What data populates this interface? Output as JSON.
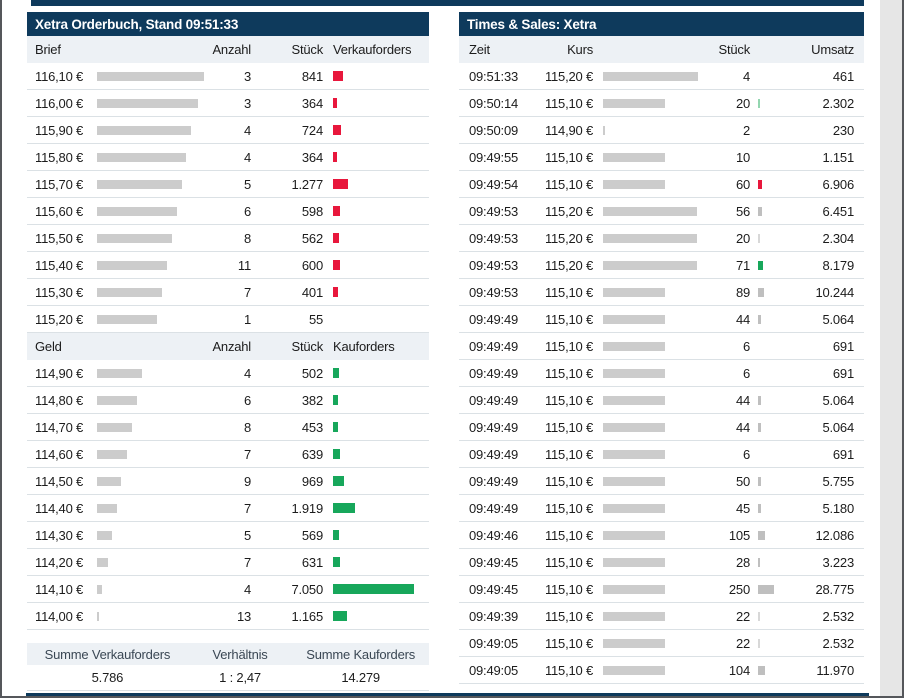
{
  "colors": {
    "accent_navy": "#0e3a5c",
    "header_bg": "#edf1f5",
    "row_line": "#dbe1e5",
    "redacted_gray": "#cccccc",
    "sell_red": "#e8173c",
    "buy_green": "#17a75b",
    "tick_gray": "#bfbfbf",
    "tick_light": "#d8d8d8",
    "tick_green": "#17a75b",
    "tick_lightgreen": "#93d6b0",
    "tick_red": "#e8173c"
  },
  "left_panel": {
    "title": "Xetra Orderbuch, Stand 09:51:33",
    "ask": {
      "columns": {
        "price": "Brief",
        "anzahl": "Anzahl",
        "stueck": "Stück",
        "orders": "Verkauforders"
      },
      "rows": [
        {
          "price": "116,10 €",
          "bar": 107,
          "anzahl": "3",
          "stueck": "841",
          "order": 10
        },
        {
          "price": "116,00 €",
          "bar": 101,
          "anzahl": "3",
          "stueck": "364",
          "order": 4
        },
        {
          "price": "115,90 €",
          "bar": 94,
          "anzahl": "4",
          "stueck": "724",
          "order": 8
        },
        {
          "price": "115,80 €",
          "bar": 89,
          "anzahl": "4",
          "stueck": "364",
          "order": 4
        },
        {
          "price": "115,70 €",
          "bar": 85,
          "anzahl": "5",
          "stueck": "1.277",
          "order": 15
        },
        {
          "price": "115,60 €",
          "bar": 80,
          "anzahl": "6",
          "stueck": "598",
          "order": 7
        },
        {
          "price": "115,50 €",
          "bar": 75,
          "anzahl": "8",
          "stueck": "562",
          "order": 6
        },
        {
          "price": "115,40 €",
          "bar": 70,
          "anzahl": "11",
          "stueck": "600",
          "order": 7
        },
        {
          "price": "115,30 €",
          "bar": 65,
          "anzahl": "7",
          "stueck": "401",
          "order": 5
        },
        {
          "price": "115,20 €",
          "bar": 60,
          "anzahl": "1",
          "stueck": "55",
          "order": 0
        }
      ]
    },
    "bid": {
      "columns": {
        "price": "Geld",
        "anzahl": "Anzahl",
        "stueck": "Stück",
        "orders": "Kauforders"
      },
      "rows": [
        {
          "price": "114,90 €",
          "bar": 45,
          "anzahl": "4",
          "stueck": "502",
          "order": 6
        },
        {
          "price": "114,80 €",
          "bar": 40,
          "anzahl": "6",
          "stueck": "382",
          "order": 5
        },
        {
          "price": "114,70 €",
          "bar": 35,
          "anzahl": "8",
          "stueck": "453",
          "order": 5
        },
        {
          "price": "114,60 €",
          "bar": 30,
          "anzahl": "7",
          "stueck": "639",
          "order": 7
        },
        {
          "price": "114,50 €",
          "bar": 24,
          "anzahl": "9",
          "stueck": "969",
          "order": 11
        },
        {
          "price": "114,40 €",
          "bar": 20,
          "anzahl": "7",
          "stueck": "1.919",
          "order": 22
        },
        {
          "price": "114,30 €",
          "bar": 15,
          "anzahl": "5",
          "stueck": "569",
          "order": 6
        },
        {
          "price": "114,20 €",
          "bar": 11,
          "anzahl": "7",
          "stueck": "631",
          "order": 7
        },
        {
          "price": "114,10 €",
          "bar": 5,
          "anzahl": "4",
          "stueck": "7.050",
          "order": 81
        },
        {
          "price": "114,00 €",
          "bar": 2,
          "anzahl": "13",
          "stueck": "1.165",
          "order": 14
        }
      ]
    },
    "summary": {
      "sell_label": "Summe Verkauforders",
      "ratio_label": "Verhältnis",
      "buy_label": "Summe Kauforders",
      "sell_value": "5.786",
      "ratio_value": "1 : 2,47",
      "buy_value": "14.279"
    }
  },
  "right_panel": {
    "title": "Times & Sales: Xetra",
    "columns": {
      "zeit": "Zeit",
      "kurs": "Kurs",
      "stueck": "Stück",
      "umsatz": "Umsatz"
    },
    "rows": [
      {
        "zeit": "09:51:33",
        "kurs": "115,20 €",
        "kursbar": 95,
        "stueck": "4",
        "tick": null,
        "umsatz": "461"
      },
      {
        "zeit": "09:50:14",
        "kurs": "115,10 €",
        "kursbar": 62,
        "stueck": "20",
        "tick": {
          "color": "lightgreen",
          "w": 2
        },
        "umsatz": "2.302"
      },
      {
        "zeit": "09:50:09",
        "kurs": "114,90 €",
        "kursbar": 2,
        "stueck": "2",
        "tick": null,
        "umsatz": "230"
      },
      {
        "zeit": "09:49:55",
        "kurs": "115,10 €",
        "kursbar": 62,
        "stueck": "10",
        "tick": null,
        "umsatz": "1.151"
      },
      {
        "zeit": "09:49:54",
        "kurs": "115,10 €",
        "kursbar": 62,
        "stueck": "60",
        "tick": {
          "color": "red",
          "w": 4
        },
        "umsatz": "6.906"
      },
      {
        "zeit": "09:49:53",
        "kurs": "115,20 €",
        "kursbar": 94,
        "stueck": "56",
        "tick": {
          "color": "gray",
          "w": 4
        },
        "umsatz": "6.451"
      },
      {
        "zeit": "09:49:53",
        "kurs": "115,20 €",
        "kursbar": 94,
        "stueck": "20",
        "tick": {
          "color": "light",
          "w": 2
        },
        "umsatz": "2.304"
      },
      {
        "zeit": "09:49:53",
        "kurs": "115,20 €",
        "kursbar": 94,
        "stueck": "71",
        "tick": {
          "color": "green",
          "w": 5
        },
        "umsatz": "8.179"
      },
      {
        "zeit": "09:49:53",
        "kurs": "115,10 €",
        "kursbar": 62,
        "stueck": "89",
        "tick": {
          "color": "gray",
          "w": 6
        },
        "umsatz": "10.244"
      },
      {
        "zeit": "09:49:49",
        "kurs": "115,10 €",
        "kursbar": 62,
        "stueck": "44",
        "tick": {
          "color": "gray",
          "w": 3
        },
        "umsatz": "5.064"
      },
      {
        "zeit": "09:49:49",
        "kurs": "115,10 €",
        "kursbar": 62,
        "stueck": "6",
        "tick": null,
        "umsatz": "691"
      },
      {
        "zeit": "09:49:49",
        "kurs": "115,10 €",
        "kursbar": 62,
        "stueck": "6",
        "tick": null,
        "umsatz": "691"
      },
      {
        "zeit": "09:49:49",
        "kurs": "115,10 €",
        "kursbar": 62,
        "stueck": "44",
        "tick": {
          "color": "gray",
          "w": 3
        },
        "umsatz": "5.064"
      },
      {
        "zeit": "09:49:49",
        "kurs": "115,10 €",
        "kursbar": 62,
        "stueck": "44",
        "tick": {
          "color": "gray",
          "w": 3
        },
        "umsatz": "5.064"
      },
      {
        "zeit": "09:49:49",
        "kurs": "115,10 €",
        "kursbar": 62,
        "stueck": "6",
        "tick": null,
        "umsatz": "691"
      },
      {
        "zeit": "09:49:49",
        "kurs": "115,10 €",
        "kursbar": 62,
        "stueck": "50",
        "tick": {
          "color": "gray",
          "w": 3
        },
        "umsatz": "5.755"
      },
      {
        "zeit": "09:49:49",
        "kurs": "115,10 €",
        "kursbar": 62,
        "stueck": "45",
        "tick": {
          "color": "gray",
          "w": 3
        },
        "umsatz": "5.180"
      },
      {
        "zeit": "09:49:46",
        "kurs": "115,10 €",
        "kursbar": 62,
        "stueck": "105",
        "tick": {
          "color": "gray",
          "w": 7
        },
        "umsatz": "12.086"
      },
      {
        "zeit": "09:49:45",
        "kurs": "115,10 €",
        "kursbar": 62,
        "stueck": "28",
        "tick": {
          "color": "gray",
          "w": 2
        },
        "umsatz": "3.223"
      },
      {
        "zeit": "09:49:45",
        "kurs": "115,10 €",
        "kursbar": 62,
        "stueck": "250",
        "tick": {
          "color": "gray",
          "w": 16
        },
        "umsatz": "28.775"
      },
      {
        "zeit": "09:49:39",
        "kurs": "115,10 €",
        "kursbar": 62,
        "stueck": "22",
        "tick": {
          "color": "light",
          "w": 2
        },
        "umsatz": "2.532"
      },
      {
        "zeit": "09:49:05",
        "kurs": "115,10 €",
        "kursbar": 62,
        "stueck": "22",
        "tick": {
          "color": "light",
          "w": 2
        },
        "umsatz": "2.532"
      },
      {
        "zeit": "09:49:05",
        "kurs": "115,10 €",
        "kursbar": 62,
        "stueck": "104",
        "tick": {
          "color": "gray",
          "w": 7
        },
        "umsatz": "11.970"
      }
    ]
  }
}
